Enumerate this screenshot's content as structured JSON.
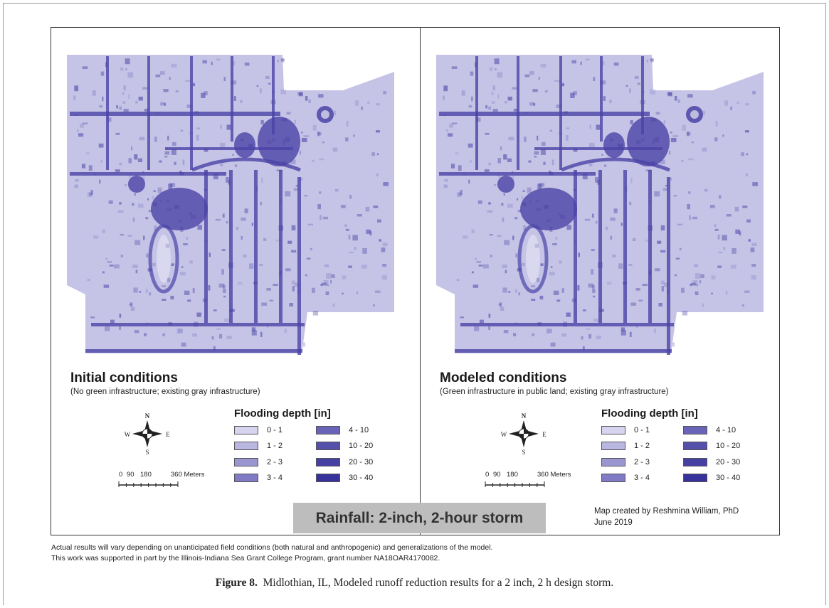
{
  "panels": [
    {
      "title": "Initial conditions",
      "subtitle": "(No green infrastructure; existing gray infrastructure)"
    },
    {
      "title": "Modeled conditions",
      "subtitle": "(Green infrastructure in public land; existing gray infrastructure)"
    }
  ],
  "legend": {
    "title": "Flooding depth [in]",
    "classes": [
      {
        "label": "0 - 1",
        "color": "#d6d4ef"
      },
      {
        "label": "1 - 2",
        "color": "#b9b6e2"
      },
      {
        "label": "2 - 3",
        "color": "#9a96d2"
      },
      {
        "label": "3 - 4",
        "color": "#807bc4"
      },
      {
        "label": "4 - 10",
        "color": "#6a64b8"
      },
      {
        "label": "10 - 20",
        "color": "#5550ac"
      },
      {
        "label": "20 - 30",
        "color": "#4640a3"
      },
      {
        "label": "30 - 40",
        "color": "#37329a"
      }
    ]
  },
  "compass": {
    "n": "N",
    "s": "S",
    "e": "E",
    "w": "W"
  },
  "scale_bar": {
    "ticks": [
      "0",
      "90",
      "180",
      "360 Meters"
    ]
  },
  "rainfall_label": "Rainfall: 2-inch, 2-hour storm",
  "credit": {
    "line1": "Map created by Reshmina William, PhD",
    "line2": "June 2019"
  },
  "notes": [
    "Actual results will vary depending on unanticipated field conditions (both natural and anthropogenic) and generalizations of the model.",
    "This work was supported in part by the Illinois-Indiana Sea Grant College Program, grant number NA18OAR4170082."
  ],
  "caption": {
    "label": "Figure 8.",
    "text": "Midlothian, IL, Modeled runoff reduction results for a 2 inch, 2 h design storm."
  },
  "colors": {
    "map_fill": "#c5c3e6",
    "map_dark": "#4a44a6",
    "rain_box": "#bdbdbd"
  }
}
